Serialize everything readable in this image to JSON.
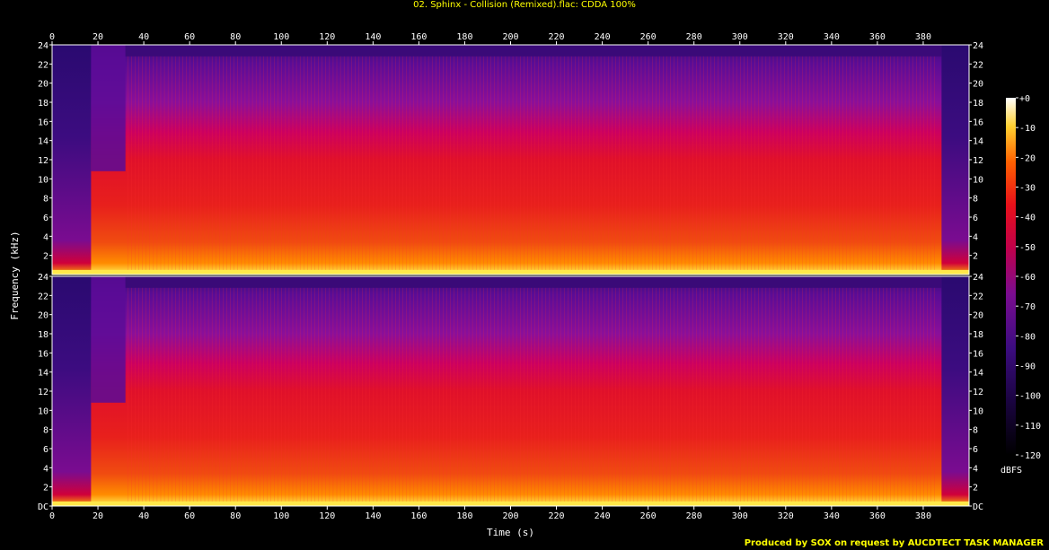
{
  "title": "02. Sphinx - Collision (Remixed).flac: CDDA 100%",
  "footer": "Produced by SOX on request by AUCDTECT TASK MANAGER",
  "chart_data": {
    "type": "heatmap",
    "xlabel": "Time (s)",
    "ylabel": "Frequency (kHz)",
    "x_ticks": [
      "0",
      "20",
      "40",
      "60",
      "80",
      "100",
      "120",
      "140",
      "160",
      "180",
      "200",
      "220",
      "240",
      "260",
      "280",
      "300",
      "320",
      "340",
      "360",
      "380"
    ],
    "xlim": [
      0,
      400
    ],
    "y_ticks_top": [
      "24",
      "22",
      "20",
      "18",
      "16",
      "14",
      "12",
      "10",
      "8",
      "6",
      "4",
      "2"
    ],
    "y_ticks_bottom": [
      "24",
      "22",
      "20",
      "18",
      "16",
      "14",
      "12",
      "10",
      "8",
      "6",
      "4",
      "2",
      "DC"
    ],
    "ylim": [
      0,
      24
    ],
    "channels": 2,
    "colorbar": {
      "label": "dBFS",
      "ticks": [
        "+0",
        "-10",
        "-20",
        "-30",
        "-40",
        "-50",
        "-60",
        "-70",
        "-80",
        "-90",
        "-100",
        "-110",
        "-120"
      ],
      "range": [
        -120,
        0
      ]
    },
    "colors": {
      "background": "#000000",
      "title": "#ffff00",
      "axes": "#ffffff",
      "panel_base": "#d0003a",
      "panel_upper": "#6a0aa0",
      "panel_top": "#3c0d7a",
      "panel_low": "#ff8a00",
      "panel_dc": "#fff25a"
    }
  }
}
